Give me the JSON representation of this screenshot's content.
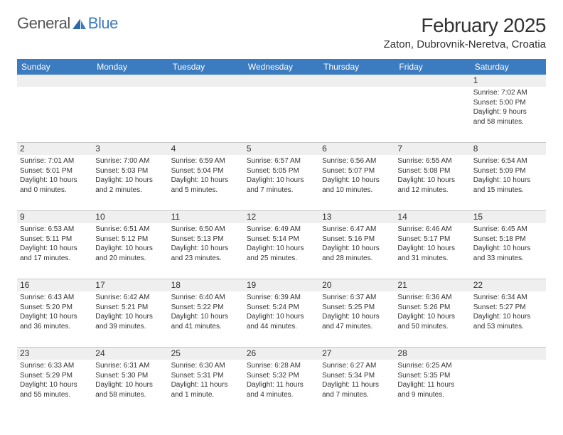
{
  "brand": {
    "part1": "General",
    "part2": "Blue"
  },
  "title": "February 2025",
  "location": "Zaton, Dubrovnik-Neretva, Croatia",
  "colors": {
    "header_bg": "#3b7bbf",
    "header_text": "#ffffff",
    "daynum_bg": "#efefef",
    "text": "#333333",
    "rule": "#c8c8c8",
    "page_bg": "#ffffff"
  },
  "typography": {
    "title_fontsize": 28,
    "location_fontsize": 15,
    "dayheader_fontsize": 12,
    "daynum_fontsize": 12,
    "detail_fontsize": 10
  },
  "day_names": [
    "Sunday",
    "Monday",
    "Tuesday",
    "Wednesday",
    "Thursday",
    "Friday",
    "Saturday"
  ],
  "weeks": [
    [
      null,
      null,
      null,
      null,
      null,
      null,
      {
        "n": "1",
        "sunrise": "Sunrise: 7:02 AM",
        "sunset": "Sunset: 5:00 PM",
        "daylight1": "Daylight: 9 hours",
        "daylight2": "and 58 minutes."
      }
    ],
    [
      {
        "n": "2",
        "sunrise": "Sunrise: 7:01 AM",
        "sunset": "Sunset: 5:01 PM",
        "daylight1": "Daylight: 10 hours",
        "daylight2": "and 0 minutes."
      },
      {
        "n": "3",
        "sunrise": "Sunrise: 7:00 AM",
        "sunset": "Sunset: 5:03 PM",
        "daylight1": "Daylight: 10 hours",
        "daylight2": "and 2 minutes."
      },
      {
        "n": "4",
        "sunrise": "Sunrise: 6:59 AM",
        "sunset": "Sunset: 5:04 PM",
        "daylight1": "Daylight: 10 hours",
        "daylight2": "and 5 minutes."
      },
      {
        "n": "5",
        "sunrise": "Sunrise: 6:57 AM",
        "sunset": "Sunset: 5:05 PM",
        "daylight1": "Daylight: 10 hours",
        "daylight2": "and 7 minutes."
      },
      {
        "n": "6",
        "sunrise": "Sunrise: 6:56 AM",
        "sunset": "Sunset: 5:07 PM",
        "daylight1": "Daylight: 10 hours",
        "daylight2": "and 10 minutes."
      },
      {
        "n": "7",
        "sunrise": "Sunrise: 6:55 AM",
        "sunset": "Sunset: 5:08 PM",
        "daylight1": "Daylight: 10 hours",
        "daylight2": "and 12 minutes."
      },
      {
        "n": "8",
        "sunrise": "Sunrise: 6:54 AM",
        "sunset": "Sunset: 5:09 PM",
        "daylight1": "Daylight: 10 hours",
        "daylight2": "and 15 minutes."
      }
    ],
    [
      {
        "n": "9",
        "sunrise": "Sunrise: 6:53 AM",
        "sunset": "Sunset: 5:11 PM",
        "daylight1": "Daylight: 10 hours",
        "daylight2": "and 17 minutes."
      },
      {
        "n": "10",
        "sunrise": "Sunrise: 6:51 AM",
        "sunset": "Sunset: 5:12 PM",
        "daylight1": "Daylight: 10 hours",
        "daylight2": "and 20 minutes."
      },
      {
        "n": "11",
        "sunrise": "Sunrise: 6:50 AM",
        "sunset": "Sunset: 5:13 PM",
        "daylight1": "Daylight: 10 hours",
        "daylight2": "and 23 minutes."
      },
      {
        "n": "12",
        "sunrise": "Sunrise: 6:49 AM",
        "sunset": "Sunset: 5:14 PM",
        "daylight1": "Daylight: 10 hours",
        "daylight2": "and 25 minutes."
      },
      {
        "n": "13",
        "sunrise": "Sunrise: 6:47 AM",
        "sunset": "Sunset: 5:16 PM",
        "daylight1": "Daylight: 10 hours",
        "daylight2": "and 28 minutes."
      },
      {
        "n": "14",
        "sunrise": "Sunrise: 6:46 AM",
        "sunset": "Sunset: 5:17 PM",
        "daylight1": "Daylight: 10 hours",
        "daylight2": "and 31 minutes."
      },
      {
        "n": "15",
        "sunrise": "Sunrise: 6:45 AM",
        "sunset": "Sunset: 5:18 PM",
        "daylight1": "Daylight: 10 hours",
        "daylight2": "and 33 minutes."
      }
    ],
    [
      {
        "n": "16",
        "sunrise": "Sunrise: 6:43 AM",
        "sunset": "Sunset: 5:20 PM",
        "daylight1": "Daylight: 10 hours",
        "daylight2": "and 36 minutes."
      },
      {
        "n": "17",
        "sunrise": "Sunrise: 6:42 AM",
        "sunset": "Sunset: 5:21 PM",
        "daylight1": "Daylight: 10 hours",
        "daylight2": "and 39 minutes."
      },
      {
        "n": "18",
        "sunrise": "Sunrise: 6:40 AM",
        "sunset": "Sunset: 5:22 PM",
        "daylight1": "Daylight: 10 hours",
        "daylight2": "and 41 minutes."
      },
      {
        "n": "19",
        "sunrise": "Sunrise: 6:39 AM",
        "sunset": "Sunset: 5:24 PM",
        "daylight1": "Daylight: 10 hours",
        "daylight2": "and 44 minutes."
      },
      {
        "n": "20",
        "sunrise": "Sunrise: 6:37 AM",
        "sunset": "Sunset: 5:25 PM",
        "daylight1": "Daylight: 10 hours",
        "daylight2": "and 47 minutes."
      },
      {
        "n": "21",
        "sunrise": "Sunrise: 6:36 AM",
        "sunset": "Sunset: 5:26 PM",
        "daylight1": "Daylight: 10 hours",
        "daylight2": "and 50 minutes."
      },
      {
        "n": "22",
        "sunrise": "Sunrise: 6:34 AM",
        "sunset": "Sunset: 5:27 PM",
        "daylight1": "Daylight: 10 hours",
        "daylight2": "and 53 minutes."
      }
    ],
    [
      {
        "n": "23",
        "sunrise": "Sunrise: 6:33 AM",
        "sunset": "Sunset: 5:29 PM",
        "daylight1": "Daylight: 10 hours",
        "daylight2": "and 55 minutes."
      },
      {
        "n": "24",
        "sunrise": "Sunrise: 6:31 AM",
        "sunset": "Sunset: 5:30 PM",
        "daylight1": "Daylight: 10 hours",
        "daylight2": "and 58 minutes."
      },
      {
        "n": "25",
        "sunrise": "Sunrise: 6:30 AM",
        "sunset": "Sunset: 5:31 PM",
        "daylight1": "Daylight: 11 hours",
        "daylight2": "and 1 minute."
      },
      {
        "n": "26",
        "sunrise": "Sunrise: 6:28 AM",
        "sunset": "Sunset: 5:32 PM",
        "daylight1": "Daylight: 11 hours",
        "daylight2": "and 4 minutes."
      },
      {
        "n": "27",
        "sunrise": "Sunrise: 6:27 AM",
        "sunset": "Sunset: 5:34 PM",
        "daylight1": "Daylight: 11 hours",
        "daylight2": "and 7 minutes."
      },
      {
        "n": "28",
        "sunrise": "Sunrise: 6:25 AM",
        "sunset": "Sunset: 5:35 PM",
        "daylight1": "Daylight: 11 hours",
        "daylight2": "and 9 minutes."
      },
      null
    ]
  ]
}
